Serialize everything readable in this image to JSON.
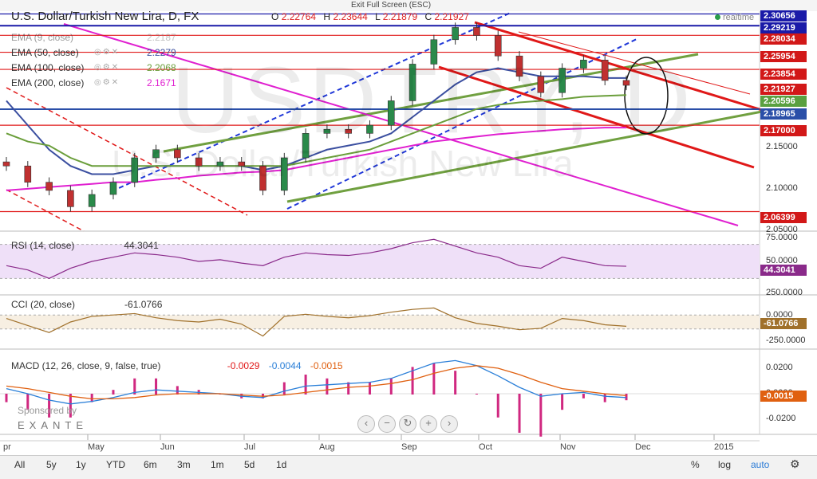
{
  "header": {
    "fullscreen_label": "Exit Full Screen (ESC)",
    "title": "U.S. Dollar/Turkish New Lira, D, FX",
    "ohlc": {
      "o_label": "O",
      "o": "2.22764",
      "h_label": "H",
      "h": "2.23644",
      "l_label": "L",
      "l": "2.21879",
      "c_label": "C",
      "c": "2.21927"
    },
    "realtime": "realtime"
  },
  "watermark": {
    "symbol": "USDTRY, D",
    "name": "U.S. Dollar/Turkish New Lira"
  },
  "indicators": [
    {
      "label": "EMA (9, close)",
      "value": "2.2187",
      "color": "#888888"
    },
    {
      "label": "EMA (50, close)",
      "value": "2.2279",
      "color": "#3b4fa0"
    },
    {
      "label": "EMA (100, close)",
      "value": "2.2068",
      "color": "#6a9e3a"
    },
    {
      "label": "EMA (200, close)",
      "value": "2.1671",
      "color": "#e020d0"
    }
  ],
  "price_axis": {
    "tags": [
      {
        "value": "2.30656",
        "bg": "#1a1aa8"
      },
      {
        "value": "2.29219",
        "bg": "#1a1aa8"
      },
      {
        "value": "2.28034",
        "bg": "#d21818"
      },
      {
        "value": "2.25954",
        "bg": "#d21818"
      },
      {
        "value": "2.23854",
        "bg": "#d21818"
      },
      {
        "value": "2.21927",
        "bg": "#d21818"
      },
      {
        "value": "2.20596",
        "bg": "#5aa040"
      },
      {
        "value": "2.18965",
        "bg": "#2a4fa8"
      },
      {
        "value": "2.17000",
        "bg": "#d21818"
      },
      {
        "value": "2.06399",
        "bg": "#d21818"
      }
    ],
    "ticks": [
      "2.15000",
      "2.10000",
      "2.05000"
    ]
  },
  "rsi": {
    "label": "RSI (14, close)",
    "value": "44.3041",
    "ticks": [
      "75.0000",
      "50.0000"
    ],
    "tag": "44.3041",
    "color": "#8a2a8a"
  },
  "cci": {
    "label": "CCI (20, close)",
    "value": "-61.0766",
    "ticks": [
      "250.0000",
      "0.0000",
      "-250.0000"
    ],
    "tag": "-61.0766",
    "color": "#a0702a"
  },
  "macd": {
    "label": "MACD (12, 26, close, 9, false, true)",
    "values": [
      "-0.0029",
      "-0.0044",
      "-0.0015"
    ],
    "ticks": [
      "0.0200",
      "0.0000",
      "-0.0200"
    ],
    "tag": "-0.0015"
  },
  "x_axis": {
    "labels": [
      "pr",
      "May",
      "Jun",
      "Jul",
      "Aug",
      "Sep",
      "Oct",
      "Nov",
      "Dec",
      "2015"
    ]
  },
  "sponsor": {
    "line1": "Sponsored by",
    "line2": "EXANTE"
  },
  "timeframes": [
    "All",
    "5y",
    "1y",
    "YTD",
    "6m",
    "3m",
    "1m",
    "5d",
    "1d"
  ],
  "bottom_right": [
    "%",
    "log",
    "auto"
  ],
  "icons": {
    "settings": "gear-icon",
    "zoom_out": "minus-icon",
    "zoom_in": "plus-icon",
    "reset": "reset-icon",
    "scroll_left": "chevron-left-icon",
    "scroll_right": "chevron-right-icon"
  },
  "chart_data": {
    "type": "candlestick",
    "ylim": [
      2.04,
      2.31
    ],
    "x": [
      "Apr-25",
      "May-01",
      "May-08",
      "May-15",
      "May-22",
      "Jun-01",
      "Jun-08",
      "Jun-15",
      "Jun-22",
      "Jul-01",
      "Jul-08",
      "Jul-15",
      "Jul-22",
      "Aug-01",
      "Aug-08",
      "Aug-15",
      "Aug-22",
      "Sep-01",
      "Sep-08",
      "Sep-15",
      "Sep-22",
      "Oct-01",
      "Oct-08",
      "Oct-15",
      "Oct-22",
      "Nov-01",
      "Nov-08",
      "Nov-15",
      "Nov-22",
      "Nov-25"
    ],
    "close": [
      2.12,
      2.1,
      2.09,
      2.07,
      2.085,
      2.1,
      2.13,
      2.14,
      2.13,
      2.12,
      2.125,
      2.12,
      2.09,
      2.13,
      2.16,
      2.165,
      2.16,
      2.17,
      2.2,
      2.245,
      2.275,
      2.29,
      2.28,
      2.255,
      2.23,
      2.21,
      2.24,
      2.25,
      2.225,
      2.219
    ],
    "series": [
      {
        "name": "EMA (50, close)",
        "values": [
          2.2,
          2.17,
          2.14,
          2.12,
          2.11,
          2.11,
          2.115,
          2.12,
          2.12,
          2.12,
          2.12,
          2.12,
          2.115,
          2.12,
          2.13,
          2.14,
          2.145,
          2.15,
          2.16,
          2.18,
          2.2,
          2.22,
          2.235,
          2.24,
          2.235,
          2.23,
          2.23,
          2.23,
          2.228,
          2.228
        ]
      },
      {
        "name": "EMA (100, close)",
        "values": [
          2.16,
          2.15,
          2.145,
          2.13,
          2.12,
          2.12,
          2.12,
          2.12,
          2.12,
          2.12,
          2.12,
          2.12,
          2.12,
          2.12,
          2.125,
          2.13,
          2.135,
          2.14,
          2.15,
          2.16,
          2.17,
          2.18,
          2.19,
          2.195,
          2.198,
          2.2,
          2.202,
          2.205,
          2.206,
          2.207
        ]
      },
      {
        "name": "EMA (200, close)",
        "values": [
          2.09,
          2.092,
          2.094,
          2.096,
          2.098,
          2.1,
          2.1,
          2.103,
          2.105,
          2.108,
          2.11,
          2.112,
          2.113,
          2.115,
          2.12,
          2.125,
          2.13,
          2.135,
          2.14,
          2.145,
          2.15,
          2.153,
          2.156,
          2.159,
          2.161,
          2.163,
          2.165,
          2.166,
          2.167,
          2.167
        ]
      }
    ],
    "horizontal_levels": [
      2.30656,
      2.29219,
      2.28034,
      2.25954,
      2.23854,
      2.18965,
      2.17,
      2.06399
    ],
    "rsi": [
      45,
      40,
      30,
      42,
      50,
      55,
      60,
      58,
      55,
      50,
      52,
      48,
      45,
      55,
      60,
      58,
      57,
      60,
      65,
      72,
      76,
      68,
      60,
      55,
      45,
      42,
      55,
      50,
      45,
      44.3
    ],
    "cci": [
      50,
      -50,
      -150,
      0,
      80,
      100,
      120,
      60,
      20,
      0,
      40,
      -30,
      -200,
      80,
      110,
      80,
      60,
      90,
      140,
      180,
      200,
      60,
      -20,
      -60,
      -110,
      -90,
      50,
      20,
      -40,
      -61
    ],
    "macd": [
      0.004,
      0.0,
      -0.005,
      -0.008,
      -0.006,
      -0.003,
      0.001,
      0.003,
      0.002,
      0.001,
      0.0,
      -0.002,
      -0.003,
      0.002,
      0.006,
      0.007,
      0.008,
      0.009,
      0.012,
      0.018,
      0.024,
      0.026,
      0.022,
      0.014,
      0.005,
      -0.002,
      0.0,
      0.001,
      -0.002,
      -0.003
    ],
    "signal": [
      0.006,
      0.004,
      0.001,
      -0.002,
      -0.004,
      -0.004,
      -0.003,
      -0.001,
      0.0,
      0.0,
      0.0,
      -0.001,
      -0.002,
      -0.001,
      0.001,
      0.003,
      0.005,
      0.006,
      0.008,
      0.011,
      0.016,
      0.02,
      0.022,
      0.02,
      0.015,
      0.009,
      0.004,
      0.002,
      0.0,
      -0.0015
    ]
  }
}
